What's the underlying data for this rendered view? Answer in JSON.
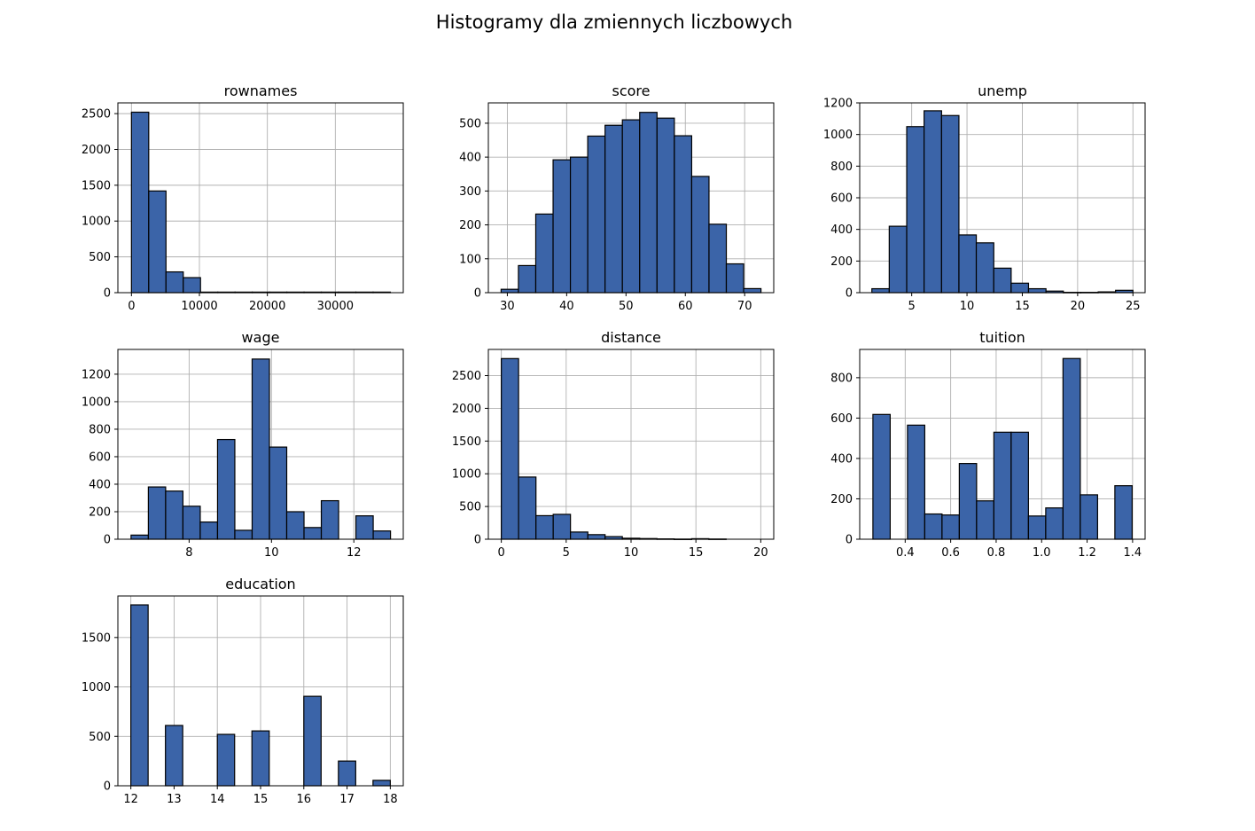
{
  "figure": {
    "title": "Histogramy dla zmiennych liczbowych",
    "bar_color": "#3b64a8",
    "edge_color": "#000000",
    "grid": true
  },
  "chart_data": [
    {
      "type": "bar",
      "title": "rownames",
      "bin_edges": [
        1,
        2541.07,
        5081.13,
        7621.2,
        10161.27,
        12701.33,
        15241.4,
        17781.47,
        20321.53,
        22861.6,
        25401.67,
        27941.73,
        30481.8,
        33021.87,
        35561.93,
        38102
      ],
      "values": [
        2520,
        1420,
        290,
        210,
        8,
        8,
        8,
        8,
        8,
        8,
        8,
        8,
        8,
        8,
        8
      ],
      "xlim": [
        -2000,
        40000
      ],
      "ylim": [
        0,
        2650
      ],
      "xticks": [
        0,
        10000,
        20000,
        30000
      ],
      "yticks": [
        0,
        500,
        1000,
        1500,
        2000,
        2500
      ],
      "xtick_labels": [
        "0",
        "10000",
        "20000",
        "30000"
      ],
      "ytick_labels": [
        "0",
        "500",
        "1000",
        "1500",
        "2000",
        "2500"
      ]
    },
    {
      "type": "bar",
      "title": "score",
      "bin_edges": [
        28.95,
        31.87,
        34.79,
        37.71,
        40.63,
        43.55,
        46.47,
        49.39,
        52.31,
        55.23,
        58.15,
        61.07,
        63.99,
        66.91,
        69.83,
        72.75
      ],
      "values": [
        10,
        80,
        232,
        392,
        400,
        462,
        494,
        510,
        532,
        515,
        463,
        343,
        202,
        85,
        12
      ],
      "xlim": [
        26.8,
        74.9
      ],
      "ylim": [
        0,
        560
      ],
      "xticks": [
        30,
        40,
        50,
        60,
        70
      ],
      "yticks": [
        0,
        100,
        200,
        300,
        400,
        500
      ],
      "xtick_labels": [
        "30",
        "40",
        "50",
        "60",
        "70"
      ],
      "ytick_labels": [
        "0",
        "100",
        "200",
        "300",
        "400",
        "500"
      ]
    },
    {
      "type": "bar",
      "title": "unemp",
      "bin_edges": [
        1.4,
        2.97,
        4.55,
        6.12,
        7.7,
        9.27,
        10.84,
        12.42,
        13.99,
        15.56,
        17.14,
        18.71,
        20.28,
        21.86,
        23.43,
        25.0
      ],
      "values": [
        25,
        420,
        1050,
        1150,
        1120,
        365,
        315,
        155,
        60,
        25,
        10,
        2,
        2,
        5,
        15
      ],
      "xlim": [
        0.3,
        26.1
      ],
      "ylim": [
        0,
        1200
      ],
      "xticks": [
        5,
        10,
        15,
        20,
        25
      ],
      "yticks": [
        0,
        200,
        400,
        600,
        800,
        1000,
        1200
      ],
      "xtick_labels": [
        "5",
        "10",
        "15",
        "20",
        "25"
      ],
      "ytick_labels": [
        "0",
        "200",
        "400",
        "600",
        "800",
        "1000",
        "1200"
      ]
    },
    {
      "type": "bar",
      "title": "wage",
      "bin_edges": [
        6.59,
        7.01,
        7.43,
        7.85,
        8.27,
        8.69,
        9.11,
        9.53,
        9.95,
        10.37,
        10.79,
        11.21,
        11.63,
        12.05,
        12.47,
        12.89
      ],
      "values": [
        30,
        380,
        350,
        240,
        125,
        725,
        65,
        1310,
        670,
        200,
        85,
        280,
        0,
        170,
        60
      ],
      "xlim": [
        6.27,
        13.2
      ],
      "ylim": [
        0,
        1380
      ],
      "xticks": [
        8,
        10,
        12
      ],
      "yticks": [
        0,
        200,
        400,
        600,
        800,
        1000,
        1200
      ],
      "xtick_labels": [
        "8",
        "10",
        "12"
      ],
      "ytick_labels": [
        "0",
        "200",
        "400",
        "600",
        "800",
        "1000",
        "1200"
      ]
    },
    {
      "type": "bar",
      "title": "distance",
      "bin_edges": [
        0,
        1.33,
        2.67,
        4.0,
        5.33,
        6.67,
        8.0,
        9.33,
        10.67,
        12.0,
        13.33,
        14.67,
        16.0,
        17.33,
        18.67,
        20.0
      ],
      "values": [
        2760,
        950,
        360,
        380,
        110,
        70,
        40,
        15,
        10,
        5,
        2,
        8,
        3,
        0,
        0
      ],
      "xlim": [
        -1.0,
        21.0
      ],
      "ylim": [
        0,
        2900
      ],
      "xticks": [
        0,
        5,
        10,
        15,
        20
      ],
      "yticks": [
        0,
        500,
        1000,
        1500,
        2000,
        2500
      ],
      "xtick_labels": [
        "0",
        "5",
        "10",
        "15",
        "20"
      ],
      "ytick_labels": [
        "0",
        "500",
        "1000",
        "1500",
        "2000",
        "2500"
      ]
    },
    {
      "type": "bar",
      "title": "tuition",
      "bin_edges": [
        0.258,
        0.334,
        0.41,
        0.486,
        0.562,
        0.638,
        0.714,
        0.79,
        0.866,
        0.942,
        1.018,
        1.094,
        1.17,
        1.246,
        1.322,
        1.398
      ],
      "values": [
        618,
        0,
        565,
        125,
        120,
        375,
        190,
        530,
        530,
        115,
        155,
        895,
        220,
        0,
        265
      ],
      "xlim": [
        0.2,
        1.455
      ],
      "ylim": [
        0,
        940
      ],
      "xticks": [
        0.4,
        0.6,
        0.8,
        1.0,
        1.2,
        1.4
      ],
      "yticks": [
        0,
        200,
        400,
        600,
        800
      ],
      "xtick_labels": [
        "0.4",
        "0.6",
        "0.8",
        "1.0",
        "1.2",
        "1.4"
      ],
      "ytick_labels": [
        "0",
        "200",
        "400",
        "600",
        "800"
      ]
    },
    {
      "type": "bar",
      "title": "education",
      "bin_edges": [
        12,
        12.4,
        12.8,
        13.2,
        13.6,
        14.0,
        14.4,
        14.8,
        15.2,
        15.6,
        16.0,
        16.4,
        16.8,
        17.2,
        17.6,
        18.0
      ],
      "values": [
        1830,
        0,
        610,
        0,
        0,
        520,
        0,
        555,
        0,
        0,
        905,
        0,
        250,
        0,
        55
      ],
      "xlim": [
        11.7,
        18.3
      ],
      "ylim": [
        0,
        1920
      ],
      "xticks": [
        12,
        13,
        14,
        15,
        16,
        17,
        18
      ],
      "yticks": [
        0,
        500,
        1000,
        1500
      ],
      "xtick_labels": [
        "12",
        "13",
        "14",
        "15",
        "16",
        "17",
        "18"
      ],
      "ytick_labels": [
        "0",
        "500",
        "1000",
        "1500"
      ]
    }
  ]
}
